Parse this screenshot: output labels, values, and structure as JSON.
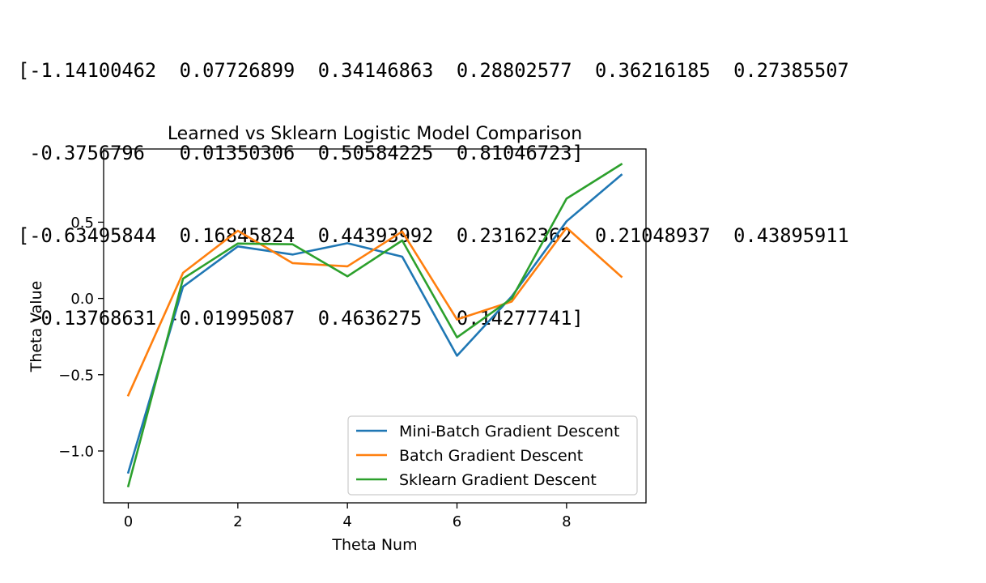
{
  "printed_output": {
    "lines": [
      "[-1.14100462  0.07726899  0.34146863  0.28802577  0.36216185  0.27385507",
      " -0.3756796   0.01350306  0.50584225  0.81046723]",
      "[-0.63495844  0.16845824  0.44393992  0.23162362  0.21048937  0.43895911",
      " -0.13768631 -0.01995087  0.4636275   0.14277741]"
    ]
  },
  "chart_data": {
    "type": "line",
    "title": "Learned vs Sklearn Logistic Model Comparison",
    "xlabel": "Theta Num",
    "ylabel": "Theta Value",
    "xlim": [
      -0.45,
      9.45
    ],
    "ylim": [
      -1.34,
      0.98
    ],
    "xticks": [
      0,
      2,
      4,
      6,
      8
    ],
    "xtick_labels": [
      "0",
      "2",
      "4",
      "6",
      "8"
    ],
    "yticks": [
      -1.0,
      -0.5,
      0.0,
      0.5
    ],
    "ytick_labels": [
      "−1.0",
      "−0.5",
      "0.0",
      "0.5"
    ],
    "grid": false,
    "legend_position": "lower-right",
    "x": [
      0,
      1,
      2,
      3,
      4,
      5,
      6,
      7,
      8,
      9
    ],
    "series": [
      {
        "name": "Mini-Batch Gradient Descent",
        "color": "#1f77b4",
        "values": [
          -1.14100462,
          0.07726899,
          0.34146863,
          0.28802577,
          0.36216185,
          0.27385507,
          -0.3756796,
          0.01350306,
          0.50584225,
          0.81046723
        ]
      },
      {
        "name": "Batch Gradient Descent",
        "color": "#ff7f0e",
        "values": [
          -0.63495844,
          0.16845824,
          0.44393992,
          0.23162362,
          0.21048937,
          0.43895911,
          -0.13768631,
          -0.01995087,
          0.4636275,
          0.14277741
        ]
      },
      {
        "name": "Sklearn Gradient Descent",
        "color": "#2ca02c",
        "values": [
          -1.23,
          0.13,
          0.36,
          0.355,
          0.145,
          0.38,
          -0.255,
          0.0,
          0.655,
          0.88
        ]
      }
    ]
  }
}
